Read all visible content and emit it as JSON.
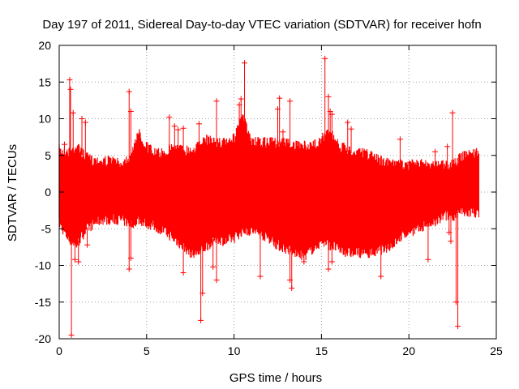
{
  "chart_data": {
    "type": "scatter",
    "title": "Day 197 of 2011, Sidereal Day-to-day VTEC variation (SDTVAR) for receiver hofn",
    "xlabel": "GPS time / hours",
    "ylabel": "SDTVAR / TECUs",
    "xlim": [
      0,
      25
    ],
    "ylim": [
      -20,
      20
    ],
    "xticks": [
      0,
      5,
      10,
      15,
      20,
      25
    ],
    "yticks": [
      -20,
      -15,
      -10,
      -5,
      0,
      5,
      10,
      15,
      20
    ],
    "grid": true,
    "marker": "+",
    "color": "#ff0000",
    "series": [
      {
        "name": "SDTVAR",
        "envelope": {
          "x": [
            0,
            0.5,
            1,
            1.5,
            2,
            2.5,
            3,
            3.5,
            4,
            4.2,
            4.5,
            5,
            5.5,
            6,
            6.5,
            7,
            7.5,
            8,
            8.5,
            9,
            9.5,
            10,
            10.5,
            11,
            11.5,
            12,
            12.5,
            13,
            13.5,
            14,
            14.5,
            15,
            15.5,
            16,
            16.5,
            17,
            17.5,
            18,
            18.5,
            19,
            19.5,
            20,
            20.5,
            21,
            21.5,
            22,
            22.5,
            23,
            23.5,
            24
          ],
          "upper": [
            6.5,
            6,
            7,
            5.5,
            5,
            5,
            5,
            4.5,
            5.5,
            6,
            9,
            7,
            6,
            6,
            7,
            6.5,
            6.5,
            7,
            8,
            7.5,
            7.5,
            8,
            11,
            7.5,
            7.5,
            7.5,
            7.5,
            7.5,
            7,
            7,
            7,
            8,
            9,
            7,
            6.5,
            6,
            6,
            5.5,
            5,
            4.5,
            4.5,
            4.5,
            4.5,
            4.5,
            4.5,
            4.5,
            4.5,
            5.5,
            6,
            6
          ],
          "lower": [
            -5,
            -7,
            -8,
            -6,
            -5,
            -4.5,
            -4.5,
            -4.5,
            -5,
            -5,
            -4.5,
            -5,
            -5.5,
            -6,
            -7,
            -8,
            -9,
            -9,
            -8,
            -7,
            -7.5,
            -7,
            -6,
            -6,
            -6.5,
            -7,
            -8,
            -8.5,
            -9,
            -9.5,
            -8.5,
            -7.5,
            -8,
            -8.5,
            -9,
            -9,
            -9,
            -9,
            -8.5,
            -8,
            -7,
            -6,
            -6,
            -5,
            -5,
            -4,
            -4,
            -3.5,
            -3.5,
            -3.5
          ]
        },
        "spikes": [
          {
            "x": 0.3,
            "y": 6.5
          },
          {
            "x": 0.6,
            "y": 15.3
          },
          {
            "x": 0.65,
            "y": 14.0
          },
          {
            "x": 0.8,
            "y": 10.8
          },
          {
            "x": 1.3,
            "y": 10.0
          },
          {
            "x": 1.5,
            "y": 9.5
          },
          {
            "x": 0.7,
            "y": -19.5
          },
          {
            "x": 0.9,
            "y": -9.2
          },
          {
            "x": 1.1,
            "y": -9.5
          },
          {
            "x": 1.6,
            "y": -7.2
          },
          {
            "x": 4.0,
            "y": 13.7
          },
          {
            "x": 4.1,
            "y": 11.0
          },
          {
            "x": 4.0,
            "y": -10.5
          },
          {
            "x": 4.1,
            "y": -9.0
          },
          {
            "x": 6.3,
            "y": 10.2
          },
          {
            "x": 6.6,
            "y": 9.0
          },
          {
            "x": 6.8,
            "y": 8.5
          },
          {
            "x": 7.1,
            "y": 8.7
          },
          {
            "x": 7.1,
            "y": -11.0
          },
          {
            "x": 8.0,
            "y": 9.3
          },
          {
            "x": 8.1,
            "y": -17.5
          },
          {
            "x": 8.2,
            "y": -13.8
          },
          {
            "x": 9.0,
            "y": 12.4
          },
          {
            "x": 8.8,
            "y": -10.2
          },
          {
            "x": 9.0,
            "y": -12.0
          },
          {
            "x": 10.3,
            "y": 11.9
          },
          {
            "x": 10.4,
            "y": 12.7
          },
          {
            "x": 10.6,
            "y": 17.6
          },
          {
            "x": 11.5,
            "y": -11.5
          },
          {
            "x": 12.5,
            "y": 11.3
          },
          {
            "x": 12.6,
            "y": 12.8
          },
          {
            "x": 12.8,
            "y": 8.2
          },
          {
            "x": 13.2,
            "y": 12.4
          },
          {
            "x": 13.2,
            "y": -12.0
          },
          {
            "x": 13.3,
            "y": -13.1
          },
          {
            "x": 14.0,
            "y": -9.5
          },
          {
            "x": 15.2,
            "y": 18.2
          },
          {
            "x": 15.4,
            "y": 13.0
          },
          {
            "x": 15.5,
            "y": 11.0
          },
          {
            "x": 15.6,
            "y": 10.6
          },
          {
            "x": 15.4,
            "y": -10.5
          },
          {
            "x": 15.6,
            "y": -9.5
          },
          {
            "x": 16.5,
            "y": 9.5
          },
          {
            "x": 16.7,
            "y": 8.6
          },
          {
            "x": 18.4,
            "y": -11.5
          },
          {
            "x": 19.5,
            "y": 7.2
          },
          {
            "x": 21.1,
            "y": -9.2
          },
          {
            "x": 21.5,
            "y": 5.5
          },
          {
            "x": 22.5,
            "y": 10.8
          },
          {
            "x": 22.7,
            "y": -15.0
          },
          {
            "x": 22.8,
            "y": -18.3
          },
          {
            "x": 22.2,
            "y": 6.2
          },
          {
            "x": 22.4,
            "y": -6.7
          },
          {
            "x": 22.3,
            "y": -5.5
          }
        ]
      }
    ]
  }
}
